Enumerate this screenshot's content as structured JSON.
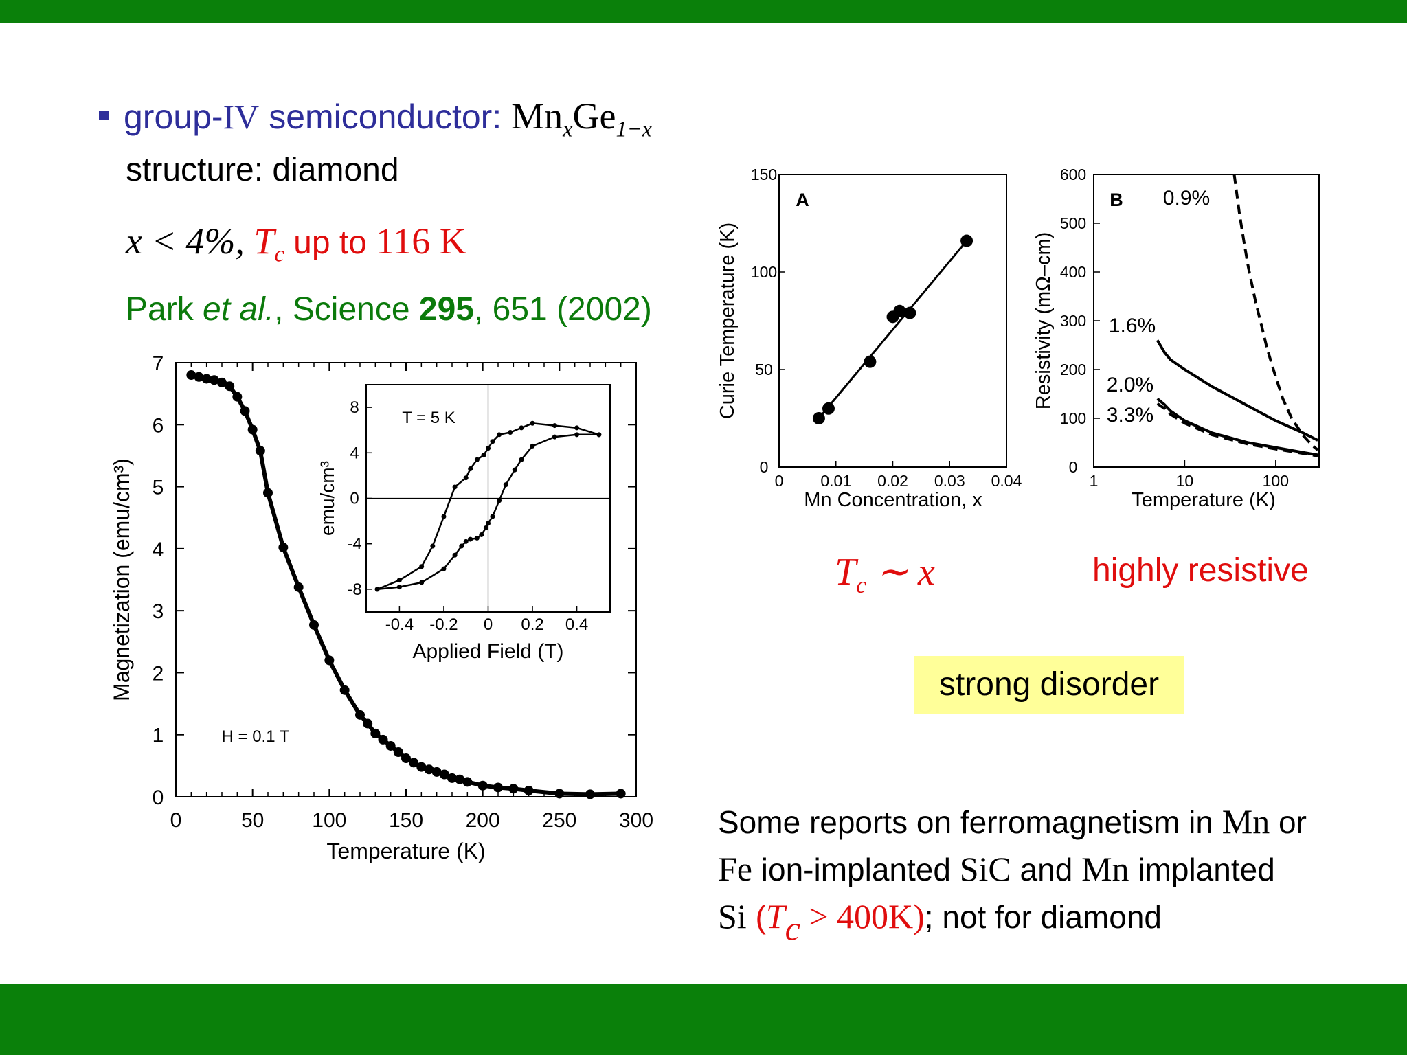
{
  "slide": {
    "line1": {
      "prefix": "group-",
      "roman": "IV",
      "text": " semiconductor: ",
      "formula_a": "Mn",
      "formula_sub1": "x",
      "formula_b": "Ge",
      "formula_sub2": "1−x"
    },
    "line2": "structure: diamond",
    "line3": {
      "a": "x < 4%, ",
      "tc": "T",
      "tc_sub": "c",
      "mid": " up to ",
      "val": "116 K"
    },
    "line4": {
      "a": "Park ",
      "b": "et al.",
      "c": ", Science ",
      "d": "295",
      "e": ", 651 (2002)"
    },
    "note_tc": {
      "t": "T",
      "sub": "c",
      "rest": " ∼ x"
    },
    "note_resistive": "highly resistive",
    "disorder": "strong disorder",
    "reports": {
      "r1a": "Some reports on ferromagnetism in ",
      "r1b": "Mn",
      "r1c": " or",
      "r2a": "Fe",
      "r2b": " ion-implanted ",
      "r2c": "SiC",
      "r2d": " and ",
      "r2e": "Mn",
      "r2f": " implanted",
      "r3a": "Si",
      "r3b": " (",
      "r3c": "T",
      "r3d": "c",
      "r3e": " > 400K)",
      "r3f": "; not for diamond"
    },
    "colors": {
      "green_bar": "#0a800a",
      "blue": "#2e2e9a",
      "red": "#e00d0d",
      "green_text": "#0b7a0b",
      "highlight": "#ffff99"
    }
  },
  "chart_data": [
    {
      "type": "line",
      "id": "magnetization",
      "xlabel": "Temperature (K)",
      "ylabel": "Magnetization (emu/cm³)",
      "annotation": "H = 0.1 T",
      "xlim": [
        0,
        300
      ],
      "ylim": [
        0,
        7
      ],
      "xticks": [
        0,
        50,
        100,
        150,
        200,
        250,
        300
      ],
      "yticks": [
        0,
        1,
        2,
        3,
        4,
        5,
        6,
        7
      ],
      "x": [
        10,
        15,
        20,
        25,
        30,
        35,
        40,
        45,
        50,
        55,
        60,
        70,
        80,
        90,
        100,
        110,
        120,
        125,
        130,
        135,
        140,
        145,
        150,
        155,
        160,
        165,
        170,
        175,
        180,
        185,
        190,
        200,
        210,
        220,
        230,
        250,
        270,
        290
      ],
      "y": [
        6.8,
        6.77,
        6.74,
        6.72,
        6.68,
        6.62,
        6.45,
        6.22,
        5.92,
        5.58,
        4.9,
        4.02,
        3.38,
        2.77,
        2.2,
        1.72,
        1.32,
        1.18,
        1.02,
        0.92,
        0.82,
        0.72,
        0.62,
        0.55,
        0.48,
        0.44,
        0.4,
        0.36,
        0.3,
        0.28,
        0.24,
        0.18,
        0.15,
        0.13,
        0.1,
        0.05,
        0.04,
        0.05
      ]
    },
    {
      "type": "line",
      "id": "hysteresis-inset",
      "xlabel": "Applied Field (T)",
      "ylabel": "emu/cm³",
      "annotation": "T = 5 K",
      "xlim": [
        -0.55,
        0.55
      ],
      "ylim": [
        -10,
        10
      ],
      "xticks": [
        -0.4,
        -0.2,
        0,
        0.2,
        0.4
      ],
      "xtick_labels": [
        "-0.4",
        "-0.2",
        "0",
        "0.2",
        "0.4"
      ],
      "yticks": [
        -8,
        -4,
        0,
        4,
        8
      ],
      "series": [
        {
          "x": [
            -0.5,
            -0.4,
            -0.3,
            -0.2,
            -0.15,
            -0.12,
            -0.1,
            -0.08,
            -0.05,
            -0.03,
            -0.01,
            0,
            0.02,
            0.05,
            0.08,
            0.12,
            0.15,
            0.2,
            0.3,
            0.4,
            0.5
          ],
          "y": [
            -8,
            -7.8,
            -7.4,
            -6.2,
            -5,
            -4.2,
            -3.8,
            -3.6,
            -3.5,
            -3.2,
            -2.6,
            -2.2,
            -1.6,
            -0.2,
            1.2,
            2.5,
            3.4,
            4.6,
            5.4,
            5.6,
            5.6
          ]
        },
        {
          "x": [
            0.5,
            0.4,
            0.3,
            0.2,
            0.15,
            0.1,
            0.05,
            0.02,
            0,
            -0.02,
            -0.05,
            -0.08,
            -0.1,
            -0.15,
            -0.2,
            -0.25,
            -0.3,
            -0.4,
            -0.5
          ],
          "y": [
            5.6,
            6.2,
            6.4,
            6.6,
            6.2,
            5.8,
            5.6,
            5,
            4.4,
            3.8,
            3.4,
            2.6,
            1.8,
            1,
            -1.6,
            -4.2,
            -6,
            -7.2,
            -8
          ]
        }
      ]
    },
    {
      "type": "scatter",
      "id": "curie-vs-mn",
      "panel_label": "A",
      "xlabel": "Mn Concentration, x",
      "ylabel": "Curie Temperature (K)",
      "xlim": [
        0,
        0.04
      ],
      "ylim": [
        0,
        150
      ],
      "xticks": [
        0,
        0.01,
        0.02,
        0.03,
        0.04
      ],
      "xtick_labels": [
        "0",
        "0.01",
        "0.02",
        "0.03",
        "0.04"
      ],
      "yticks": [
        0,
        50,
        100,
        150
      ],
      "x": [
        0.007,
        0.0087,
        0.016,
        0.02,
        0.0212,
        0.023,
        0.033
      ],
      "y": [
        25,
        30,
        54,
        77,
        80,
        79,
        116
      ],
      "fit": {
        "x": [
          0.007,
          0.033
        ],
        "y": [
          25,
          116
        ]
      }
    },
    {
      "type": "line",
      "id": "resistivity-vs-temperature",
      "panel_label": "B",
      "xlabel": "Temperature (K)",
      "ylabel": "Resistivity (mΩ–cm)",
      "xscale": "log",
      "xlim": [
        1,
        300
      ],
      "ylim": [
        0,
        600
      ],
      "xticks": [
        1,
        10,
        100
      ],
      "yticks": [
        0,
        100,
        200,
        300,
        400,
        500,
        600
      ],
      "series": [
        {
          "name": "0.9%",
          "dashed": true,
          "x": [
            35,
            40,
            45,
            50,
            60,
            70,
            80,
            100,
            120,
            150,
            200,
            250,
            290
          ],
          "y": [
            600,
            520,
            460,
            410,
            340,
            290,
            245,
            185,
            140,
            100,
            65,
            45,
            35
          ]
        },
        {
          "name": "1.6%",
          "dashed": false,
          "x": [
            5,
            6,
            7,
            10,
            20,
            50,
            100,
            200,
            290
          ],
          "y": [
            260,
            235,
            220,
            200,
            165,
            125,
            95,
            70,
            55
          ]
        },
        {
          "name": "2.0%",
          "dashed": false,
          "x": [
            5,
            6,
            7,
            10,
            20,
            50,
            100,
            200,
            290
          ],
          "y": [
            140,
            128,
            115,
            95,
            70,
            50,
            40,
            30,
            25
          ]
        },
        {
          "name": "3.3%",
          "dashed": true,
          "x": [
            5,
            6,
            7,
            10,
            20,
            50,
            100,
            200,
            290
          ],
          "y": [
            130,
            120,
            108,
            90,
            66,
            47,
            37,
            28,
            23
          ]
        }
      ]
    }
  ]
}
